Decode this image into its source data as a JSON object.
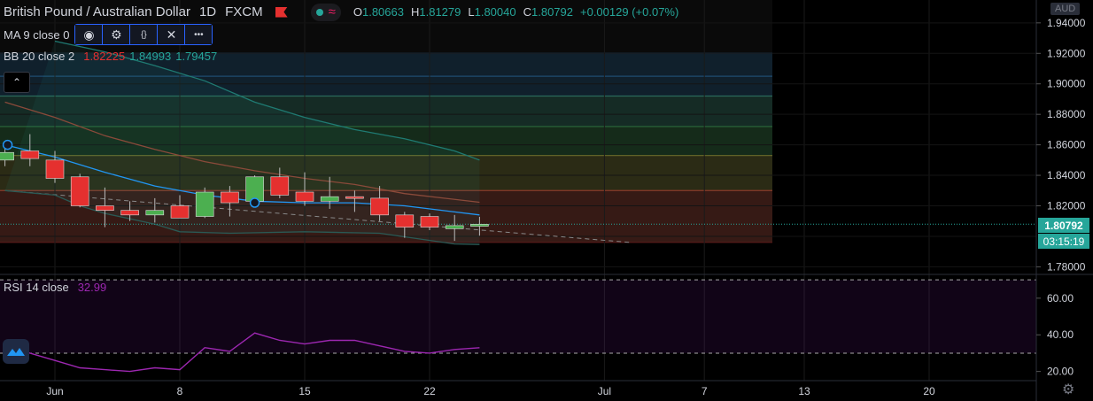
{
  "header": {
    "symbol": "British Pound / Australian Dollar",
    "timeframe": "1D",
    "source": "FXCM",
    "ohlc": [
      {
        "k": "O",
        "v": "1.80663"
      },
      {
        "k": "H",
        "v": "1.81279"
      },
      {
        "k": "L",
        "v": "1.80040"
      },
      {
        "k": "C",
        "v": "1.80792"
      }
    ],
    "change": "+0.00129 (+0.07%)"
  },
  "indicators": {
    "ma": {
      "label": "MA 9 close 0"
    },
    "bb": {
      "label": "BB 20 close 2",
      "basis": "1.82225",
      "upper": "1.84993",
      "lower": "1.79457",
      "basis_color": "#e5302f",
      "band_color": "#26a69a"
    },
    "rsi": {
      "label": "RSI 14 close",
      "value": "32.99",
      "color": "#9c27b0"
    }
  },
  "toolbar": {
    "buttons": [
      {
        "name": "visibility-eye-icon",
        "glyph": "◉"
      },
      {
        "name": "settings-gear-icon",
        "glyph": "⚙"
      },
      {
        "name": "source-code-icon",
        "glyph": "{}"
      },
      {
        "name": "remove-close-icon",
        "glyph": "✕"
      },
      {
        "name": "more-dots-icon",
        "glyph": "•••"
      }
    ],
    "collapse_glyph": "⌃"
  },
  "axis": {
    "currency": "AUD",
    "current_price": "1.80792",
    "countdown": "03:15:19"
  },
  "chart_data": [
    {
      "type": "candlestick",
      "title": "British Pound / Australian Dollar",
      "ylim": [
        1.775,
        1.955
      ],
      "price_ticks": [
        "1.94000",
        "1.92000",
        "1.90000",
        "1.88000",
        "1.86000",
        "1.84000",
        "1.82000",
        "1.78000"
      ],
      "x_ticks": [
        {
          "label": "Jun",
          "day": 0
        },
        {
          "label": "8",
          "day": 5
        },
        {
          "label": "15",
          "day": 10
        },
        {
          "label": "22",
          "day": 15
        },
        {
          "label": "Jul",
          "day": 22
        },
        {
          "label": "7",
          "day": 26
        },
        {
          "label": "13",
          "day": 30
        },
        {
          "label": "20",
          "day": 35
        }
      ],
      "candles": [
        {
          "day": -2,
          "o": 1.85,
          "h": 1.858,
          "l": 1.846,
          "c": 1.855
        },
        {
          "day": -1,
          "o": 1.856,
          "h": 1.867,
          "l": 1.846,
          "c": 1.851
        },
        {
          "day": 0,
          "o": 1.85,
          "h": 1.856,
          "l": 1.835,
          "c": 1.838
        },
        {
          "day": 1,
          "o": 1.839,
          "h": 1.841,
          "l": 1.819,
          "c": 1.82
        },
        {
          "day": 2,
          "o": 1.82,
          "h": 1.832,
          "l": 1.806,
          "c": 1.817
        },
        {
          "day": 3,
          "o": 1.817,
          "h": 1.823,
          "l": 1.81,
          "c": 1.814
        },
        {
          "day": 4,
          "o": 1.814,
          "h": 1.825,
          "l": 1.809,
          "c": 1.817
        },
        {
          "day": 5,
          "o": 1.82,
          "h": 1.827,
          "l": 1.812,
          "c": 1.812
        },
        {
          "day": 6,
          "o": 1.813,
          "h": 1.832,
          "l": 1.812,
          "c": 1.829
        },
        {
          "day": 7,
          "o": 1.829,
          "h": 1.833,
          "l": 1.813,
          "c": 1.822
        },
        {
          "day": 8,
          "o": 1.823,
          "h": 1.84,
          "l": 1.82,
          "c": 1.839
        },
        {
          "day": 9,
          "o": 1.839,
          "h": 1.845,
          "l": 1.825,
          "c": 1.827
        },
        {
          "day": 10,
          "o": 1.829,
          "h": 1.842,
          "l": 1.82,
          "c": 1.823
        },
        {
          "day": 11,
          "o": 1.823,
          "h": 1.839,
          "l": 1.818,
          "c": 1.826
        },
        {
          "day": 12,
          "o": 1.826,
          "h": 1.83,
          "l": 1.816,
          "c": 1.825
        },
        {
          "day": 13,
          "o": 1.825,
          "h": 1.833,
          "l": 1.81,
          "c": 1.814
        },
        {
          "day": 14,
          "o": 1.814,
          "h": 1.816,
          "l": 1.799,
          "c": 1.806
        },
        {
          "day": 15,
          "o": 1.813,
          "h": 1.815,
          "l": 1.804,
          "c": 1.806
        },
        {
          "day": 16,
          "o": 1.805,
          "h": 1.814,
          "l": 1.797,
          "c": 1.807
        },
        {
          "day": 17,
          "o": 1.8066,
          "h": 1.8128,
          "l": 1.8004,
          "c": 1.8079
        }
      ],
      "bb_upper": [
        {
          "day": 0,
          "v": 1.928
        },
        {
          "day": 2,
          "v": 1.921
        },
        {
          "day": 4,
          "v": 1.912
        },
        {
          "day": 6,
          "v": 1.902
        },
        {
          "day": 8,
          "v": 1.888
        },
        {
          "day": 10,
          "v": 1.878
        },
        {
          "day": 12,
          "v": 1.87
        },
        {
          "day": 14,
          "v": 1.864
        },
        {
          "day": 16,
          "v": 1.856
        },
        {
          "day": 17,
          "v": 1.85
        }
      ],
      "bb_basis": [
        {
          "day": -2,
          "v": 1.888
        },
        {
          "day": 0,
          "v": 1.878
        },
        {
          "day": 2,
          "v": 1.866
        },
        {
          "day": 4,
          "v": 1.857
        },
        {
          "day": 6,
          "v": 1.849
        },
        {
          "day": 8,
          "v": 1.843
        },
        {
          "day": 10,
          "v": 1.838
        },
        {
          "day": 12,
          "v": 1.834
        },
        {
          "day": 14,
          "v": 1.828
        },
        {
          "day": 17,
          "v": 1.8223
        }
      ],
      "bb_lower": [
        {
          "day": -2,
          "v": 1.83
        },
        {
          "day": 0,
          "v": 1.827
        },
        {
          "day": 1,
          "v": 1.82
        },
        {
          "day": 2,
          "v": 1.815
        },
        {
          "day": 4,
          "v": 1.808
        },
        {
          "day": 5,
          "v": 1.803
        },
        {
          "day": 7,
          "v": 1.802
        },
        {
          "day": 10,
          "v": 1.803
        },
        {
          "day": 13,
          "v": 1.802
        },
        {
          "day": 16,
          "v": 1.795
        },
        {
          "day": 17,
          "v": 1.7946
        }
      ],
      "ma": [
        {
          "day": -2,
          "v": 1.86
        },
        {
          "day": 0,
          "v": 1.852
        },
        {
          "day": 2,
          "v": 1.842
        },
        {
          "day": 4,
          "v": 1.833
        },
        {
          "day": 6,
          "v": 1.827
        },
        {
          "day": 8,
          "v": 1.823
        },
        {
          "day": 10,
          "v": 1.822
        },
        {
          "day": 12,
          "v": 1.822
        },
        {
          "day": 14,
          "v": 1.82
        },
        {
          "day": 16,
          "v": 1.816
        },
        {
          "day": 17,
          "v": 1.814
        }
      ],
      "fib_levels": [
        1.92,
        1.905,
        1.892,
        1.872,
        1.853,
        1.83,
        1.796
      ],
      "fib_colors": [
        "#1e4a6e",
        "#1e4a6e",
        "#2a6a5a",
        "#2a6a3a",
        "#6b6b2a",
        "#8a3a2a",
        "#5a1a1a"
      ],
      "trendline": {
        "start": {
          "day": -2,
          "v": 1.83
        },
        "end": {
          "day": 23,
          "v": 1.796
        }
      }
    },
    {
      "type": "line",
      "title": "RSI 14 close",
      "ylim": [
        15,
        72
      ],
      "y_ticks": [
        "60.00",
        "40.00",
        "20.00"
      ],
      "bands": [
        70,
        30
      ],
      "values": [
        {
          "day": -2,
          "v": 32
        },
        {
          "day": -1,
          "v": 30
        },
        {
          "day": 0,
          "v": 26
        },
        {
          "day": 1,
          "v": 22
        },
        {
          "day": 2,
          "v": 21
        },
        {
          "day": 3,
          "v": 20
        },
        {
          "day": 4,
          "v": 22
        },
        {
          "day": 5,
          "v": 21
        },
        {
          "day": 6,
          "v": 33
        },
        {
          "day": 7,
          "v": 31
        },
        {
          "day": 8,
          "v": 41
        },
        {
          "day": 9,
          "v": 37
        },
        {
          "day": 10,
          "v": 35
        },
        {
          "day": 11,
          "v": 37
        },
        {
          "day": 12,
          "v": 37
        },
        {
          "day": 13,
          "v": 34
        },
        {
          "day": 14,
          "v": 31
        },
        {
          "day": 15,
          "v": 30
        },
        {
          "day": 16,
          "v": 32
        },
        {
          "day": 17,
          "v": 32.99
        }
      ]
    }
  ]
}
